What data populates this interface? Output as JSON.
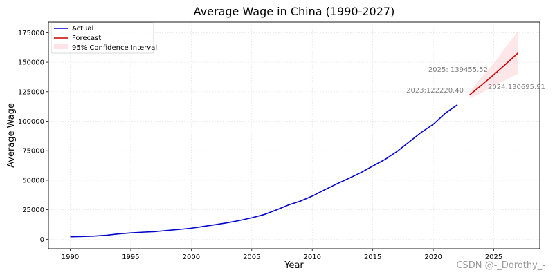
{
  "chart_data": {
    "type": "line",
    "title": "Average Wage in China (1990-2027)",
    "xlabel": "Year",
    "ylabel": "Average Wage",
    "xlim": [
      1988.2,
      2028.8
    ],
    "ylim": [
      -8000,
      184000
    ],
    "xticks": [
      1990,
      1995,
      2000,
      2005,
      2010,
      2015,
      2020,
      2025
    ],
    "yticks": [
      0,
      25000,
      50000,
      75000,
      100000,
      125000,
      150000,
      175000
    ],
    "grid": true,
    "legend_position": "top-left",
    "series": [
      {
        "name": "Actual",
        "color": "#0000cc",
        "x": [
          1990,
          1991,
          1992,
          1993,
          1994,
          1995,
          1996,
          1997,
          1998,
          1999,
          2000,
          2001,
          2002,
          2003,
          2004,
          2005,
          2006,
          2007,
          2008,
          2009,
          2010,
          2011,
          2012,
          2013,
          2014,
          2015,
          2016,
          2017,
          2018,
          2019,
          2020,
          2021,
          2022
        ],
        "y": [
          2140,
          2340,
          2711,
          3371,
          4538,
          5348,
          5980,
          6444,
          7446,
          8319,
          9333,
          10834,
          12373,
          13969,
          15920,
          18200,
          20856,
          24721,
          28898,
          32244,
          36539,
          41799,
          46769,
          51483,
          56360,
          62029,
          67569,
          74318,
          82413,
          90501,
          97379,
          106837,
          114029
        ]
      },
      {
        "name": "Forecast",
        "color": "#cc0000",
        "x": [
          2023,
          2024,
          2025,
          2026,
          2027
        ],
        "y": [
          122220.4,
          130695.91,
          139455.52,
          148500,
          157800
        ]
      }
    ],
    "confidence_interval": {
      "name": "95% Confidence Interval",
      "color": "#ffb6c1",
      "x": [
        2023,
        2024,
        2025,
        2026,
        2027
      ],
      "lower": [
        119500,
        124000,
        130000,
        135000,
        140000
      ],
      "upper": [
        125000,
        137500,
        149000,
        163000,
        176000
      ]
    },
    "annotations": [
      {
        "text": "2023:122220.40",
        "x": 2023,
        "y": 122220.4
      },
      {
        "text": "2024:130695.91",
        "x": 2024,
        "y": 130695.91
      },
      {
        "text": "2025: 139455.52",
        "x": 2025,
        "y": 139455.52
      }
    ]
  },
  "watermark": "CSDN @-_Dorothy_-"
}
